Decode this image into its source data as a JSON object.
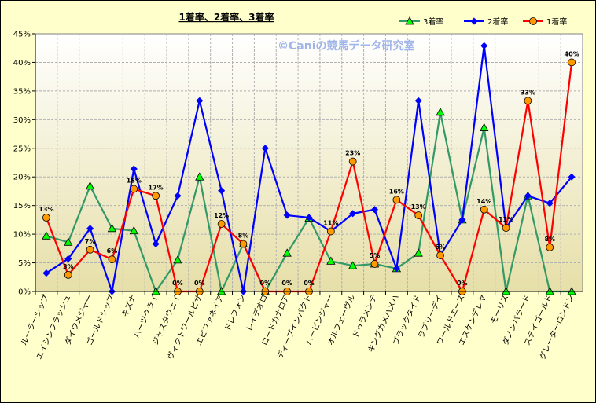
{
  "chart_data": {
    "type": "line",
    "title": "1着率、2着率、3着率",
    "watermark": "©Caniの競馬データ研究室",
    "categories": [
      "ルーラーシップ",
      "エイシンフラッシュ",
      "ダイワメジャー",
      "ゴールドシップ",
      "キズナ",
      "ハーツクライ",
      "ジャスタウェイ",
      "ヴィクトワールピサ",
      "エピファネイア",
      "ドレフォン",
      "レイデオロ",
      "ロードカナロア",
      "ディープインパクト",
      "ハービンジャー",
      "オルフェーヴル",
      "ドゥラメンテ",
      "キングカメハメハ",
      "ブラックタイド",
      "ラブリーデイ",
      "ワールドエース",
      "エスケンデレヤ",
      "モーリス",
      "ダノンバラード",
      "ステイゴールド",
      "グレーターロンドン"
    ],
    "ylim": [
      0,
      45
    ],
    "yticks": [
      "0%",
      "5%",
      "10%",
      "15%",
      "20%",
      "25%",
      "30%",
      "35%",
      "40%",
      "45%"
    ],
    "grid": true,
    "legend_position": "top-right",
    "series": [
      {
        "name": "3着率",
        "color": "#339966",
        "marker": "triangle",
        "marker_fill": "#00ff00",
        "values": [
          9.7,
          8.6,
          18.4,
          11.0,
          10.6,
          0,
          5.5,
          20.0,
          0,
          8.3,
          0,
          6.7,
          12.8,
          5.3,
          4.5,
          4.8,
          4.0,
          6.7,
          31.3,
          12.5,
          28.6,
          0,
          16.7,
          0,
          0
        ]
      },
      {
        "name": "2着率",
        "color": "#0000ff",
        "marker": "diamond",
        "marker_fill": "#0000ff",
        "values": [
          3.2,
          5.7,
          11.0,
          0,
          21.4,
          8.3,
          16.7,
          33.3,
          17.6,
          0,
          25.0,
          13.3,
          12.9,
          10.5,
          13.6,
          14.3,
          4.0,
          33.3,
          6.3,
          12.5,
          42.9,
          11.1,
          16.7,
          15.4,
          20.0
        ]
      },
      {
        "name": "1着率",
        "color": "#ff0000",
        "marker": "circle",
        "marker_fill": "#ff9900",
        "values": [
          12.9,
          2.9,
          7.3,
          5.6,
          17.9,
          16.7,
          0,
          0,
          11.8,
          8.3,
          0,
          0,
          0,
          10.5,
          22.7,
          4.8,
          16.0,
          13.3,
          6.3,
          0,
          14.3,
          11.1,
          33.3,
          7.7,
          40.0
        ],
        "data_labels": [
          "13%",
          "3%",
          "7%",
          "6%",
          "18%",
          "17%",
          "0%",
          "0%",
          "12%",
          "8%",
          "0%",
          "0%",
          "0%",
          "11%",
          "23%",
          "5%",
          "16%",
          "13%",
          "6%",
          "0%",
          "14%",
          "11%",
          "33%",
          "8%",
          "40%"
        ]
      }
    ]
  }
}
